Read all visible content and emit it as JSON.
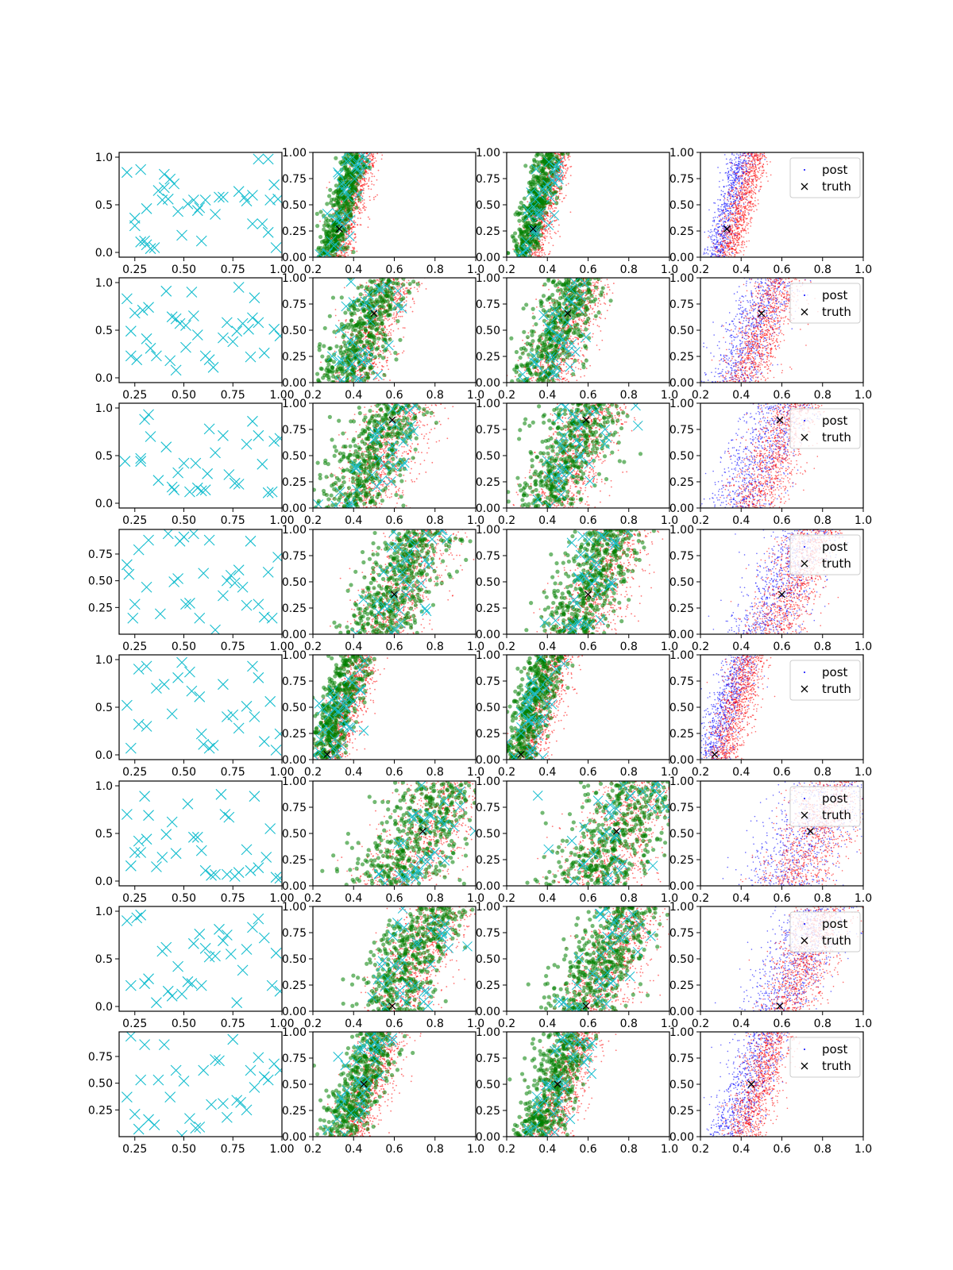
{
  "chart_data": {
    "type": "scatter",
    "layout": {
      "rows": 8,
      "cols": 4
    },
    "legend": {
      "placement": "upper-right",
      "entries": [
        {
          "label": "post",
          "marker": "dot",
          "color": "#0000ff"
        },
        {
          "label": "truth",
          "marker": "x",
          "color": "#000000"
        }
      ]
    },
    "colors": {
      "design_points": "#17becf",
      "post_a": "#ff0000",
      "post_b": "#0000ff",
      "green": "#008000",
      "truth": "#000000"
    },
    "first_col_xticks": [
      "0.25",
      "0.50",
      "0.75",
      "1.00"
    ],
    "other_xticks": [
      "0.2",
      "0.4",
      "0.6",
      "0.8",
      "1.0"
    ],
    "other_yticks": [
      "0.00",
      "0.25",
      "0.50",
      "0.75",
      "1.00"
    ],
    "first_col_yticks_full": [
      "0.0",
      "0.5",
      "1.0"
    ],
    "first_col_yticks_short": [
      "0.25",
      "0.50",
      "0.75"
    ],
    "rows": [
      {
        "truth": [
          0.33,
          0.27
        ],
        "first_yticks": "full",
        "legend": true,
        "design_points": [
          [
            0.21,
            0.84
          ],
          [
            0.28,
            0.87
          ],
          [
            0.37,
            0.65
          ],
          [
            0.4,
            0.68
          ],
          [
            0.4,
            0.82
          ],
          [
            0.43,
            0.77
          ],
          [
            0.45,
            0.72
          ],
          [
            0.42,
            0.56
          ],
          [
            0.39,
            0.55
          ],
          [
            0.47,
            0.43
          ],
          [
            0.52,
            0.51
          ],
          [
            0.55,
            0.55
          ],
          [
            0.57,
            0.44
          ],
          [
            0.58,
            0.47
          ],
          [
            0.61,
            0.55
          ],
          [
            0.59,
            0.12
          ],
          [
            0.49,
            0.18
          ],
          [
            0.25,
            0.36
          ],
          [
            0.25,
            0.28
          ],
          [
            0.31,
            0.46
          ],
          [
            0.28,
            0.11
          ],
          [
            0.31,
            0.08
          ],
          [
            0.33,
            0.04
          ],
          [
            0.35,
            0.05
          ],
          [
            0.3,
            0.12
          ],
          [
            0.68,
            0.58
          ],
          [
            0.7,
            0.58
          ],
          [
            0.66,
            0.4
          ],
          [
            0.78,
            0.64
          ],
          [
            0.81,
            0.58
          ],
          [
            0.82,
            0.54
          ],
          [
            0.85,
            0.6
          ],
          [
            0.88,
            0.98
          ],
          [
            0.93,
            0.98
          ],
          [
            0.96,
            0.71
          ],
          [
            0.98,
            0.56
          ],
          [
            0.94,
            0.55
          ],
          [
            0.93,
            0.21
          ],
          [
            0.97,
            0.05
          ],
          [
            0.85,
            0.3
          ],
          [
            0.9,
            0.3
          ]
        ]
      },
      {
        "truth": [
          0.5,
          0.66
        ],
        "first_yticks": "full",
        "legend": true,
        "design_points": [
          [
            0.21,
            0.83
          ],
          [
            0.25,
            0.68
          ],
          [
            0.29,
            0.71
          ],
          [
            0.32,
            0.74
          ],
          [
            0.23,
            0.49
          ],
          [
            0.23,
            0.23
          ],
          [
            0.26,
            0.19
          ],
          [
            0.31,
            0.41
          ],
          [
            0.33,
            0.31
          ],
          [
            0.36,
            0.23
          ],
          [
            0.41,
            0.91
          ],
          [
            0.44,
            0.64
          ],
          [
            0.46,
            0.62
          ],
          [
            0.48,
            0.57
          ],
          [
            0.43,
            0.18
          ],
          [
            0.46,
            0.08
          ],
          [
            0.51,
            0.32
          ],
          [
            0.51,
            0.55
          ],
          [
            0.55,
            0.65
          ],
          [
            0.57,
            0.45
          ],
          [
            0.54,
            0.9
          ],
          [
            0.61,
            0.23
          ],
          [
            0.63,
            0.19
          ],
          [
            0.65,
            0.11
          ],
          [
            0.7,
            0.42
          ],
          [
            0.72,
            0.58
          ],
          [
            0.75,
            0.38
          ],
          [
            0.77,
            0.49
          ],
          [
            0.8,
            0.57
          ],
          [
            0.83,
            0.51
          ],
          [
            0.85,
            0.63
          ],
          [
            0.86,
            0.84
          ],
          [
            0.88,
            0.58
          ],
          [
            0.91,
            0.26
          ],
          [
            0.96,
            0.51
          ],
          [
            0.99,
            0.44
          ],
          [
            0.78,
            0.95
          ],
          [
            0.84,
            0.22
          ]
        ]
      },
      {
        "truth": [
          0.59,
          0.84
        ],
        "first_yticks": "full",
        "legend": true,
        "design_points": [
          [
            0.2,
            0.44
          ],
          [
            0.28,
            0.44
          ],
          [
            0.28,
            0.47
          ],
          [
            0.3,
            0.88
          ],
          [
            0.32,
            0.93
          ],
          [
            0.33,
            0.7
          ],
          [
            0.37,
            0.24
          ],
          [
            0.41,
            0.59
          ],
          [
            0.44,
            0.17
          ],
          [
            0.45,
            0.14
          ],
          [
            0.47,
            0.32
          ],
          [
            0.5,
            0.42
          ],
          [
            0.53,
            0.12
          ],
          [
            0.56,
            0.42
          ],
          [
            0.57,
            0.16
          ],
          [
            0.59,
            0.13
          ],
          [
            0.61,
            0.14
          ],
          [
            0.62,
            0.31
          ],
          [
            0.63,
            0.78
          ],
          [
            0.66,
            0.53
          ],
          [
            0.7,
            0.71
          ],
          [
            0.73,
            0.3
          ],
          [
            0.76,
            0.21
          ],
          [
            0.78,
            0.2
          ],
          [
            0.82,
            0.62
          ],
          [
            0.85,
            0.86
          ],
          [
            0.88,
            0.71
          ],
          [
            0.9,
            0.41
          ],
          [
            0.93,
            0.11
          ],
          [
            0.95,
            0.12
          ],
          [
            0.96,
            0.65
          ],
          [
            0.99,
            0.68
          ]
        ]
      },
      {
        "truth": [
          0.6,
          0.38
        ],
        "first_yticks": "short",
        "legend": true,
        "design_points": [
          [
            0.21,
            0.65
          ],
          [
            0.22,
            0.56
          ],
          [
            0.24,
            0.15
          ],
          [
            0.25,
            0.28
          ],
          [
            0.27,
            0.79
          ],
          [
            0.31,
            0.44
          ],
          [
            0.32,
            0.88
          ],
          [
            0.38,
            0.19
          ],
          [
            0.42,
            0.94
          ],
          [
            0.45,
            0.49
          ],
          [
            0.47,
            0.52
          ],
          [
            0.48,
            0.87
          ],
          [
            0.5,
            0.91
          ],
          [
            0.51,
            0.28
          ],
          [
            0.53,
            0.29
          ],
          [
            0.55,
            0.94
          ],
          [
            0.58,
            0.15
          ],
          [
            0.6,
            0.57
          ],
          [
            0.63,
            0.88
          ],
          [
            0.66,
            0.04
          ],
          [
            0.7,
            0.36
          ],
          [
            0.72,
            0.5
          ],
          [
            0.74,
            0.55
          ],
          [
            0.76,
            0.48
          ],
          [
            0.78,
            0.6
          ],
          [
            0.8,
            0.44
          ],
          [
            0.82,
            0.27
          ],
          [
            0.84,
            0.87
          ],
          [
            0.88,
            0.28
          ],
          [
            0.91,
            0.16
          ],
          [
            0.93,
            0.58
          ],
          [
            0.95,
            0.15
          ],
          [
            0.98,
            0.72
          ]
        ]
      },
      {
        "truth": [
          0.27,
          0.05
        ],
        "first_yticks": "full",
        "legend": true,
        "design_points": [
          [
            0.21,
            0.52
          ],
          [
            0.23,
            0.07
          ],
          [
            0.27,
            0.9
          ],
          [
            0.27,
            0.32
          ],
          [
            0.31,
            0.93
          ],
          [
            0.31,
            0.3
          ],
          [
            0.36,
            0.7
          ],
          [
            0.4,
            0.74
          ],
          [
            0.44,
            0.43
          ],
          [
            0.47,
            0.81
          ],
          [
            0.49,
            0.97
          ],
          [
            0.53,
            0.87
          ],
          [
            0.54,
            0.67
          ],
          [
            0.58,
            0.61
          ],
          [
            0.59,
            0.22
          ],
          [
            0.6,
            0.11
          ],
          [
            0.63,
            0.07
          ],
          [
            0.65,
            0.1
          ],
          [
            0.7,
            0.74
          ],
          [
            0.72,
            0.4
          ],
          [
            0.75,
            0.42
          ],
          [
            0.78,
            0.28
          ],
          [
            0.82,
            0.51
          ],
          [
            0.85,
            0.93
          ],
          [
            0.86,
            0.4
          ],
          [
            0.88,
            0.81
          ],
          [
            0.91,
            0.14
          ],
          [
            0.94,
            0.56
          ],
          [
            0.97,
            0.05
          ],
          [
            0.99,
            0.22
          ]
        ]
      },
      {
        "truth": [
          0.74,
          0.52
        ],
        "first_yticks": "full",
        "legend": true,
        "design_points": [
          [
            0.21,
            0.7
          ],
          [
            0.23,
            0.16
          ],
          [
            0.25,
            0.3
          ],
          [
            0.27,
            0.42
          ],
          [
            0.28,
            0.3
          ],
          [
            0.3,
            0.89
          ],
          [
            0.32,
            0.69
          ],
          [
            0.31,
            0.44
          ],
          [
            0.36,
            0.15
          ],
          [
            0.39,
            0.25
          ],
          [
            0.41,
            0.49
          ],
          [
            0.44,
            0.62
          ],
          [
            0.46,
            0.29
          ],
          [
            0.52,
            0.81
          ],
          [
            0.55,
            0.46
          ],
          [
            0.57,
            0.46
          ],
          [
            0.59,
            0.32
          ],
          [
            0.61,
            0.11
          ],
          [
            0.64,
            0.06
          ],
          [
            0.66,
            0.07
          ],
          [
            0.69,
            0.91
          ],
          [
            0.71,
            0.7
          ],
          [
            0.73,
            0.67
          ],
          [
            0.72,
            0.07
          ],
          [
            0.76,
            0.05
          ],
          [
            0.78,
            0.09
          ],
          [
            0.82,
            0.33
          ],
          [
            0.84,
            0.11
          ],
          [
            0.86,
            0.89
          ],
          [
            0.88,
            0.14
          ],
          [
            0.92,
            0.25
          ],
          [
            0.94,
            0.55
          ],
          [
            0.97,
            0.04
          ],
          [
            0.99,
            0.03
          ]
        ]
      },
      {
        "truth": [
          0.59,
          0.05
        ],
        "first_yticks": "full",
        "legend": true,
        "design_points": [
          [
            0.21,
            0.9
          ],
          [
            0.23,
            0.22
          ],
          [
            0.26,
            0.93
          ],
          [
            0.28,
            0.96
          ],
          [
            0.3,
            0.24
          ],
          [
            0.32,
            0.29
          ],
          [
            0.36,
            0.04
          ],
          [
            0.39,
            0.58
          ],
          [
            0.41,
            0.62
          ],
          [
            0.42,
            0.16
          ],
          [
            0.44,
            0.11
          ],
          [
            0.47,
            0.42
          ],
          [
            0.49,
            0.13
          ],
          [
            0.52,
            0.26
          ],
          [
            0.54,
            0.24
          ],
          [
            0.55,
            0.66
          ],
          [
            0.58,
            0.76
          ],
          [
            0.59,
            0.22
          ],
          [
            0.61,
            0.61
          ],
          [
            0.63,
            0.52
          ],
          [
            0.66,
            0.53
          ],
          [
            0.68,
            0.81
          ],
          [
            0.7,
            0.69
          ],
          [
            0.72,
            0.75
          ],
          [
            0.74,
            0.55
          ],
          [
            0.77,
            0.04
          ],
          [
            0.8,
            0.38
          ],
          [
            0.82,
            0.6
          ],
          [
            0.85,
            0.83
          ],
          [
            0.88,
            0.92
          ],
          [
            0.91,
            0.72
          ],
          [
            0.95,
            0.22
          ],
          [
            0.97,
            0.56
          ],
          [
            0.99,
            0.16
          ]
        ]
      },
      {
        "truth": [
          0.45,
          0.5
        ],
        "first_yticks": "short",
        "legend": true,
        "design_points": [
          [
            0.21,
            0.37
          ],
          [
            0.23,
            0.94
          ],
          [
            0.25,
            0.21
          ],
          [
            0.27,
            0.07
          ],
          [
            0.28,
            0.53
          ],
          [
            0.3,
            0.86
          ],
          [
            0.32,
            0.16
          ],
          [
            0.35,
            0.11
          ],
          [
            0.37,
            0.53
          ],
          [
            0.4,
            0.86
          ],
          [
            0.43,
            0.37
          ],
          [
            0.46,
            0.62
          ],
          [
            0.49,
            0.01
          ],
          [
            0.5,
            0.52
          ],
          [
            0.53,
            0.17
          ],
          [
            0.56,
            0.08
          ],
          [
            0.58,
            0.09
          ],
          [
            0.6,
            0.62
          ],
          [
            0.64,
            0.3
          ],
          [
            0.66,
            0.72
          ],
          [
            0.68,
            0.71
          ],
          [
            0.7,
            0.31
          ],
          [
            0.72,
            0.18
          ],
          [
            0.75,
            0.91
          ],
          [
            0.77,
            0.34
          ],
          [
            0.79,
            0.32
          ],
          [
            0.82,
            0.25
          ],
          [
            0.84,
            0.62
          ],
          [
            0.86,
            0.46
          ],
          [
            0.88,
            0.74
          ],
          [
            0.91,
            0.56
          ],
          [
            0.93,
            0.53
          ],
          [
            0.96,
            0.68
          ],
          [
            0.99,
            0.62
          ]
        ]
      }
    ]
  }
}
